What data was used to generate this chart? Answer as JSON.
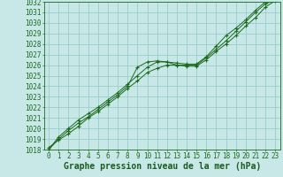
{
  "title": "Graphe pression niveau de la mer (hPa)",
  "xlabel_hours": [
    0,
    1,
    2,
    3,
    4,
    5,
    6,
    7,
    8,
    9,
    10,
    11,
    12,
    13,
    14,
    15,
    16,
    17,
    18,
    19,
    20,
    21,
    22,
    23
  ],
  "line1": [
    1018.0,
    1019.0,
    1019.8,
    1020.5,
    1021.1,
    1021.8,
    1022.5,
    1023.2,
    1024.0,
    1025.8,
    1026.3,
    1026.4,
    1026.3,
    1026.0,
    1026.0,
    1026.0,
    1026.7,
    1027.5,
    1028.3,
    1029.2,
    1030.1,
    1031.0,
    1031.8,
    1032.2
  ],
  "line2": [
    1018.0,
    1019.2,
    1020.0,
    1020.8,
    1021.4,
    1022.0,
    1022.7,
    1023.4,
    1024.2,
    1025.0,
    1025.8,
    1026.3,
    1026.3,
    1026.2,
    1026.1,
    1026.1,
    1026.8,
    1027.8,
    1028.8,
    1029.5,
    1030.3,
    1031.2,
    1032.0,
    1032.3
  ],
  "line3": [
    1018.2,
    1018.9,
    1019.5,
    1020.2,
    1021.0,
    1021.6,
    1022.3,
    1023.0,
    1023.8,
    1024.5,
    1025.3,
    1025.7,
    1026.0,
    1026.0,
    1025.9,
    1025.9,
    1026.5,
    1027.3,
    1028.0,
    1028.8,
    1029.7,
    1030.5,
    1031.5,
    1032.1
  ],
  "line_color": "#1a6b1a",
  "bg_color": "#c8e8e8",
  "grid_color": "#99cccc",
  "ylim": [
    1018,
    1032
  ],
  "yticks": [
    1018,
    1019,
    1020,
    1021,
    1022,
    1023,
    1024,
    1025,
    1026,
    1027,
    1028,
    1029,
    1030,
    1031,
    1032
  ],
  "title_color": "#1a5c1a",
  "title_fontsize": 7.0,
  "tick_fontsize": 5.5
}
